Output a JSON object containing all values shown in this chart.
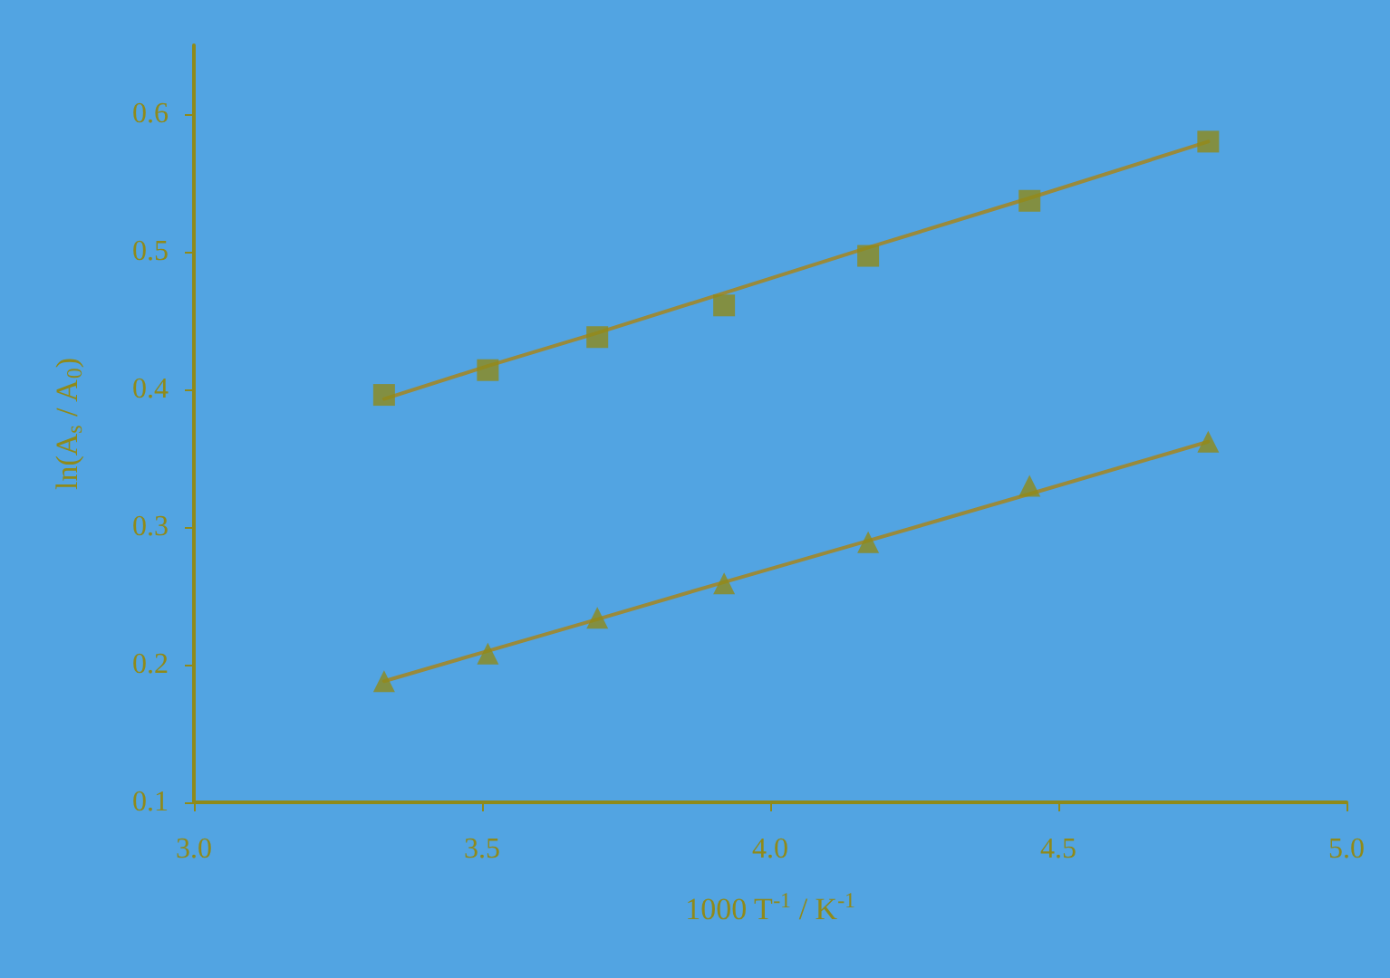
{
  "chart_data": {
    "type": "scatter",
    "xlabel": "1000 T$^{-1}$ / K$^{-1}$",
    "ylabel": "ln(A$_{s}$ / A$_{0}$)",
    "x": [
      3.33,
      3.51,
      3.7,
      3.92,
      4.17,
      4.45,
      4.76
    ],
    "series": [
      {
        "color": "#8f8a1a",
        "marker": "square",
        "values": [
          0.396,
          0.414,
          0.438,
          0.461,
          0.497,
          0.537,
          0.58
        ]
      },
      {
        "color": "#8f8a1a",
        "marker": "triangle",
        "values": [
          0.188,
          0.208,
          0.234,
          0.259,
          0.289,
          0.33,
          0.362
        ]
      },
      {
        "type": "line",
        "color": "#9a8a3a",
        "marker": "none",
        "values": [
          0.393,
          0.417,
          0.441,
          0.47,
          0.503,
          0.539,
          0.58
        ]
      },
      {
        "type": "line",
        "color": "#9a8a3a",
        "marker": "none",
        "values": [
          0.188,
          0.21,
          0.233,
          0.26,
          0.29,
          0.324,
          0.362
        ]
      }
    ],
    "xlim": [
      3.0,
      5.0
    ],
    "xticks": [
      {
        "value": 3,
        "label": "3.0"
      },
      3.5,
      {
        "value": 4,
        "label": "4.0"
      },
      4.5,
      {
        "value": 5,
        "label": "5.0"
      }
    ],
    "ylim": [
      0.1,
      0.65
    ],
    "yticks": [
      0.1,
      0.2,
      0.3,
      0.4,
      0.5,
      0.6
    ],
    "grid": false
  }
}
